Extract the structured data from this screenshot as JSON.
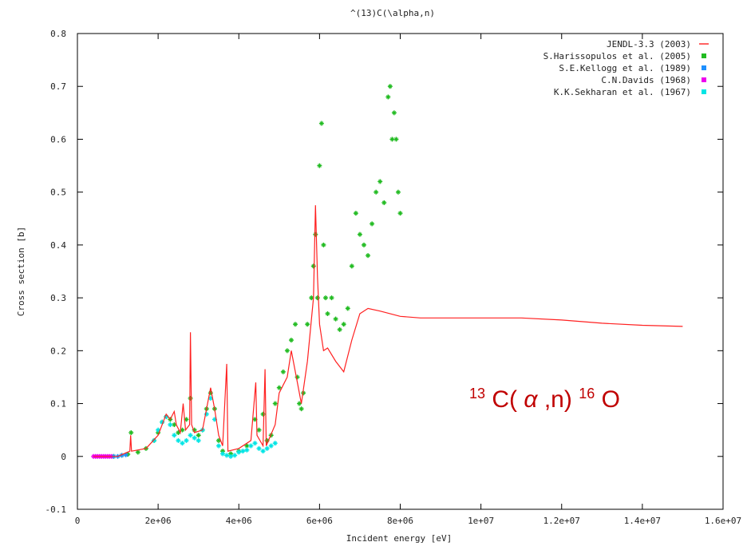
{
  "chart_data": {
    "type": "line",
    "title": "^(13)C(\\alpha,n)",
    "xlabel": "Incident energy [eV]",
    "ylabel": "Cross section [b]",
    "xlim": [
      0,
      16000000
    ],
    "ylim": [
      -0.1,
      0.8
    ],
    "x_ticks": [
      0,
      2000000,
      4000000,
      6000000,
      8000000,
      10000000,
      12000000,
      14000000,
      16000000
    ],
    "x_tick_labels": [
      "0",
      "2e+06",
      "4e+06",
      "6e+06",
      "8e+06",
      "1e+07",
      "1.2e+07",
      "1.4e+07",
      "1.6e+07"
    ],
    "y_ticks": [
      -0.1,
      0,
      0.1,
      0.2,
      0.3,
      0.4,
      0.5,
      0.6,
      0.7,
      0.8
    ],
    "y_tick_labels": [
      "-0.1",
      "0",
      "0.1",
      "0.2",
      "0.3",
      "0.4",
      "0.5",
      "0.6",
      "0.7",
      "0.8"
    ],
    "grid": false,
    "legend_position": "top-right",
    "annotation": {
      "mass_before": "13",
      "core": "C(",
      "alpha": "α",
      "after": ",n)",
      "mass_after": "16",
      "product": "O"
    },
    "series": [
      {
        "name": "JENDL-3.3 (2003)",
        "style": "line",
        "color": "#ff2020",
        "points": [
          [
            400000,
            0
          ],
          [
            1000000,
            0
          ],
          [
            1300000,
            0.01
          ],
          [
            1320000,
            0.04
          ],
          [
            1340000,
            0.01
          ],
          [
            1700000,
            0.015
          ],
          [
            2000000,
            0.04
          ],
          [
            2200000,
            0.08
          ],
          [
            2300000,
            0.07
          ],
          [
            2400000,
            0.085
          ],
          [
            2450000,
            0.06
          ],
          [
            2550000,
            0.045
          ],
          [
            2620000,
            0.1
          ],
          [
            2680000,
            0.05
          ],
          [
            2780000,
            0.06
          ],
          [
            2800000,
            0.235
          ],
          [
            2830000,
            0.06
          ],
          [
            2900000,
            0.045
          ],
          [
            3100000,
            0.05
          ],
          [
            3300000,
            0.13
          ],
          [
            3400000,
            0.09
          ],
          [
            3500000,
            0.04
          ],
          [
            3600000,
            0.02
          ],
          [
            3700000,
            0.175
          ],
          [
            3730000,
            0.01
          ],
          [
            4000000,
            0.015
          ],
          [
            4300000,
            0.03
          ],
          [
            4420000,
            0.14
          ],
          [
            4450000,
            0.04
          ],
          [
            4600000,
            0.02
          ],
          [
            4650000,
            0.165
          ],
          [
            4680000,
            0.02
          ],
          [
            4900000,
            0.06
          ],
          [
            5000000,
            0.12
          ],
          [
            5200000,
            0.15
          ],
          [
            5300000,
            0.2
          ],
          [
            5450000,
            0.14
          ],
          [
            5550000,
            0.1
          ],
          [
            5700000,
            0.18
          ],
          [
            5850000,
            0.3
          ],
          [
            5900000,
            0.475
          ],
          [
            5950000,
            0.34
          ],
          [
            6000000,
            0.25
          ],
          [
            6100000,
            0.2
          ],
          [
            6200000,
            0.205
          ],
          [
            6400000,
            0.18
          ],
          [
            6600000,
            0.16
          ],
          [
            6800000,
            0.22
          ],
          [
            7000000,
            0.27
          ],
          [
            7200000,
            0.28
          ],
          [
            7500000,
            0.275
          ],
          [
            8000000,
            0.265
          ],
          [
            8500000,
            0.262
          ],
          [
            9000000,
            0.262
          ],
          [
            10000000,
            0.262
          ],
          [
            11000000,
            0.262
          ],
          [
            12000000,
            0.258
          ],
          [
            13000000,
            0.252
          ],
          [
            14000000,
            0.248
          ],
          [
            15000000,
            0.246
          ]
        ]
      },
      {
        "name": "S.Harissopulos et al. (2005)",
        "style": "points",
        "color": "#22bb22",
        "points": [
          [
            900000,
            0
          ],
          [
            1100000,
            0.002
          ],
          [
            1250000,
            0.004
          ],
          [
            1330000,
            0.045
          ],
          [
            1500000,
            0.008
          ],
          [
            1700000,
            0.015
          ],
          [
            1900000,
            0.03
          ],
          [
            2000000,
            0.045
          ],
          [
            2100000,
            0.065
          ],
          [
            2200000,
            0.075
          ],
          [
            2300000,
            0.07
          ],
          [
            2400000,
            0.06
          ],
          [
            2500000,
            0.045
          ],
          [
            2600000,
            0.05
          ],
          [
            2700000,
            0.07
          ],
          [
            2800000,
            0.11
          ],
          [
            2900000,
            0.05
          ],
          [
            3000000,
            0.04
          ],
          [
            3100000,
            0.05
          ],
          [
            3200000,
            0.09
          ],
          [
            3300000,
            0.12
          ],
          [
            3400000,
            0.09
          ],
          [
            3500000,
            0.03
          ],
          [
            3600000,
            0.01
          ],
          [
            3800000,
            0.005
          ],
          [
            4000000,
            0.01
          ],
          [
            4200000,
            0.02
          ],
          [
            4400000,
            0.07
          ],
          [
            4500000,
            0.05
          ],
          [
            4600000,
            0.08
          ],
          [
            4700000,
            0.03
          ],
          [
            4800000,
            0.04
          ],
          [
            4900000,
            0.1
          ],
          [
            5000000,
            0.13
          ],
          [
            5100000,
            0.16
          ],
          [
            5200000,
            0.2
          ],
          [
            5300000,
            0.22
          ],
          [
            5400000,
            0.25
          ],
          [
            5450000,
            0.15
          ],
          [
            5500000,
            0.1
          ],
          [
            5550000,
            0.09
          ],
          [
            5600000,
            0.12
          ],
          [
            5700000,
            0.25
          ],
          [
            5800000,
            0.3
          ],
          [
            5850000,
            0.36
          ],
          [
            5900000,
            0.42
          ],
          [
            5950000,
            0.3
          ],
          [
            6000000,
            0.55
          ],
          [
            6050000,
            0.63
          ],
          [
            6100000,
            0.4
          ],
          [
            6150000,
            0.3
          ],
          [
            6200000,
            0.27
          ],
          [
            6300000,
            0.3
          ],
          [
            6400000,
            0.26
          ],
          [
            6500000,
            0.24
          ],
          [
            6600000,
            0.25
          ],
          [
            6700000,
            0.28
          ],
          [
            6800000,
            0.36
          ],
          [
            6900000,
            0.46
          ],
          [
            7000000,
            0.42
          ],
          [
            7100000,
            0.4
          ],
          [
            7200000,
            0.38
          ],
          [
            7300000,
            0.44
          ],
          [
            7400000,
            0.5
          ],
          [
            7500000,
            0.52
          ],
          [
            7600000,
            0.48
          ],
          [
            7700000,
            0.68
          ],
          [
            7750000,
            0.7
          ],
          [
            7800000,
            0.6
          ],
          [
            7850000,
            0.65
          ],
          [
            7900000,
            0.6
          ],
          [
            7950000,
            0.5
          ],
          [
            8000000,
            0.46
          ]
        ]
      },
      {
        "name": "S.E.Kellogg et al. (1989)",
        "style": "points",
        "color": "#1e90ff",
        "points": [
          [
            900000,
            0
          ],
          [
            1000000,
            0
          ],
          [
            1100000,
            0.002
          ],
          [
            1200000,
            0.003
          ]
        ]
      },
      {
        "name": "C.N.Davids (1968)",
        "style": "points",
        "color": "#ee00ee",
        "points": [
          [
            400000,
            0
          ],
          [
            450000,
            0
          ],
          [
            500000,
            0
          ],
          [
            550000,
            0
          ],
          [
            600000,
            0
          ],
          [
            650000,
            0
          ],
          [
            700000,
            0
          ],
          [
            750000,
            0
          ],
          [
            800000,
            0
          ],
          [
            850000,
            0
          ]
        ]
      },
      {
        "name": "K.K.Sekharan et al. (1967)",
        "style": "points",
        "color": "#00e5e5",
        "points": [
          [
            1900000,
            0.03
          ],
          [
            2000000,
            0.05
          ],
          [
            2100000,
            0.065
          ],
          [
            2200000,
            0.075
          ],
          [
            2300000,
            0.06
          ],
          [
            2400000,
            0.04
          ],
          [
            2500000,
            0.03
          ],
          [
            2600000,
            0.025
          ],
          [
            2700000,
            0.03
          ],
          [
            2800000,
            0.04
          ],
          [
            2900000,
            0.035
          ],
          [
            3000000,
            0.03
          ],
          [
            3100000,
            0.05
          ],
          [
            3200000,
            0.08
          ],
          [
            3300000,
            0.11
          ],
          [
            3400000,
            0.07
          ],
          [
            3500000,
            0.02
          ],
          [
            3600000,
            0.005
          ],
          [
            3700000,
            0.002
          ],
          [
            3800000,
            0
          ],
          [
            3900000,
            0.002
          ],
          [
            4000000,
            0.008
          ],
          [
            4100000,
            0.01
          ],
          [
            4200000,
            0.012
          ],
          [
            4300000,
            0.02
          ],
          [
            4400000,
            0.025
          ],
          [
            4500000,
            0.015
          ],
          [
            4600000,
            0.01
          ],
          [
            4700000,
            0.015
          ],
          [
            4800000,
            0.02
          ],
          [
            4900000,
            0.025
          ]
        ]
      }
    ]
  }
}
